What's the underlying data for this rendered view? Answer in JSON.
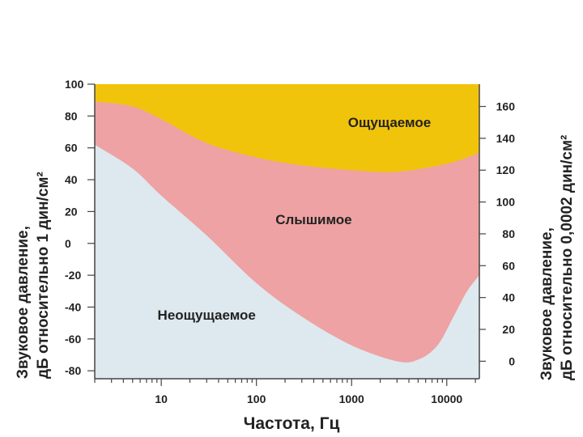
{
  "chart_data": {
    "type": "area",
    "xlabel": "Частота, Гц",
    "ylabel_left": [
      "Звуковое давление,",
      "дБ относительно 1 дин/см²"
    ],
    "ylabel_right": [
      "Звуковое давление,",
      "дБ относительно 0,0002 дин/см²"
    ],
    "xscale": "log",
    "xlim": [
      2,
      22000
    ],
    "ylim_left": [
      -85,
      100
    ],
    "ylim_right": [
      -11,
      174
    ],
    "x_ticks": [
      {
        "value": 10,
        "label": "10"
      },
      {
        "value": 100,
        "label": "100"
      },
      {
        "value": 1000,
        "label": "1000"
      },
      {
        "value": 10000,
        "label": "10000"
      }
    ],
    "y_ticks_left": [
      {
        "value": 100,
        "label": "100"
      },
      {
        "value": 80,
        "label": "80"
      },
      {
        "value": 60,
        "label": "60"
      },
      {
        "value": 40,
        "label": "40"
      },
      {
        "value": 20,
        "label": "20"
      },
      {
        "value": 0,
        "label": "0"
      },
      {
        "value": -20,
        "label": "-20"
      },
      {
        "value": -40,
        "label": "-40"
      },
      {
        "value": -60,
        "label": "-60"
      },
      {
        "value": -80,
        "label": "-80"
      }
    ],
    "y_ticks_right": [
      {
        "value": 160,
        "label": "160"
      },
      {
        "value": 140,
        "label": "140"
      },
      {
        "value": 120,
        "label": "120"
      },
      {
        "value": 100,
        "label": "100"
      },
      {
        "value": 80,
        "label": "80"
      },
      {
        "value": 60,
        "label": "60"
      },
      {
        "value": 40,
        "label": "40"
      },
      {
        "value": 20,
        "label": "20"
      },
      {
        "value": 0,
        "label": "0"
      }
    ],
    "series": [
      {
        "name": "Ощущаемое",
        "color": "#f1c40c",
        "boundary_x": [
          2,
          10,
          100,
          1000,
          3000,
          10000,
          22000
        ],
        "boundary_y": [
          100,
          100,
          100,
          100,
          100,
          100,
          100
        ]
      },
      {
        "name": "Слышимое",
        "color": "#eea2a3",
        "boundary_x": [
          2,
          5,
          10,
          30,
          100,
          300,
          1000,
          3000,
          10000,
          20000,
          22000
        ],
        "boundary_y": [
          89,
          86,
          78,
          63,
          54,
          49,
          46,
          45,
          50,
          56,
          58
        ]
      },
      {
        "name": "Неощущаемое",
        "color": "#dde9ee",
        "boundary_x": [
          2,
          5,
          10,
          30,
          100,
          300,
          1000,
          3000,
          5000,
          8000,
          12000,
          16000,
          20000,
          22000
        ],
        "boundary_y": [
          62,
          47,
          30,
          5,
          -25,
          -46,
          -64,
          -74,
          -73,
          -64,
          -45,
          -31,
          -23,
          -20
        ]
      }
    ],
    "region_labels": [
      {
        "text": "Ощущаемое",
        "x": 2500,
        "y": 73
      },
      {
        "text": "Слышимое",
        "x": 400,
        "y": 12
      },
      {
        "text": "Неощущаемое",
        "x": 30,
        "y": -48
      }
    ]
  }
}
